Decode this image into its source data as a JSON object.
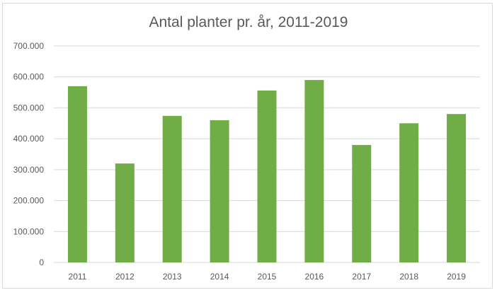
{
  "chart_data": {
    "type": "bar",
    "title": "Antal planter pr. år, 2011-2019",
    "xlabel": "",
    "ylabel": "",
    "categories": [
      "2011",
      "2012",
      "2013",
      "2014",
      "2015",
      "2016",
      "2017",
      "2018",
      "2019"
    ],
    "series": [
      {
        "values": [
          570000,
          320000,
          474000,
          460000,
          556000,
          590000,
          380000,
          450000,
          480000
        ]
      }
    ],
    "ylim": [
      0,
      700000
    ],
    "yticks": [
      0,
      100000,
      200000,
      300000,
      400000,
      500000,
      600000,
      700000
    ],
    "ytick_labels": [
      "0",
      "100.000",
      "200.000",
      "300.000",
      "400.000",
      "500.000",
      "600.000",
      "700.000"
    ],
    "grid": true,
    "legend": "none",
    "colors": {
      "bar": "#70ad47",
      "grid": "#d9d9d9",
      "text": "#595959"
    }
  }
}
